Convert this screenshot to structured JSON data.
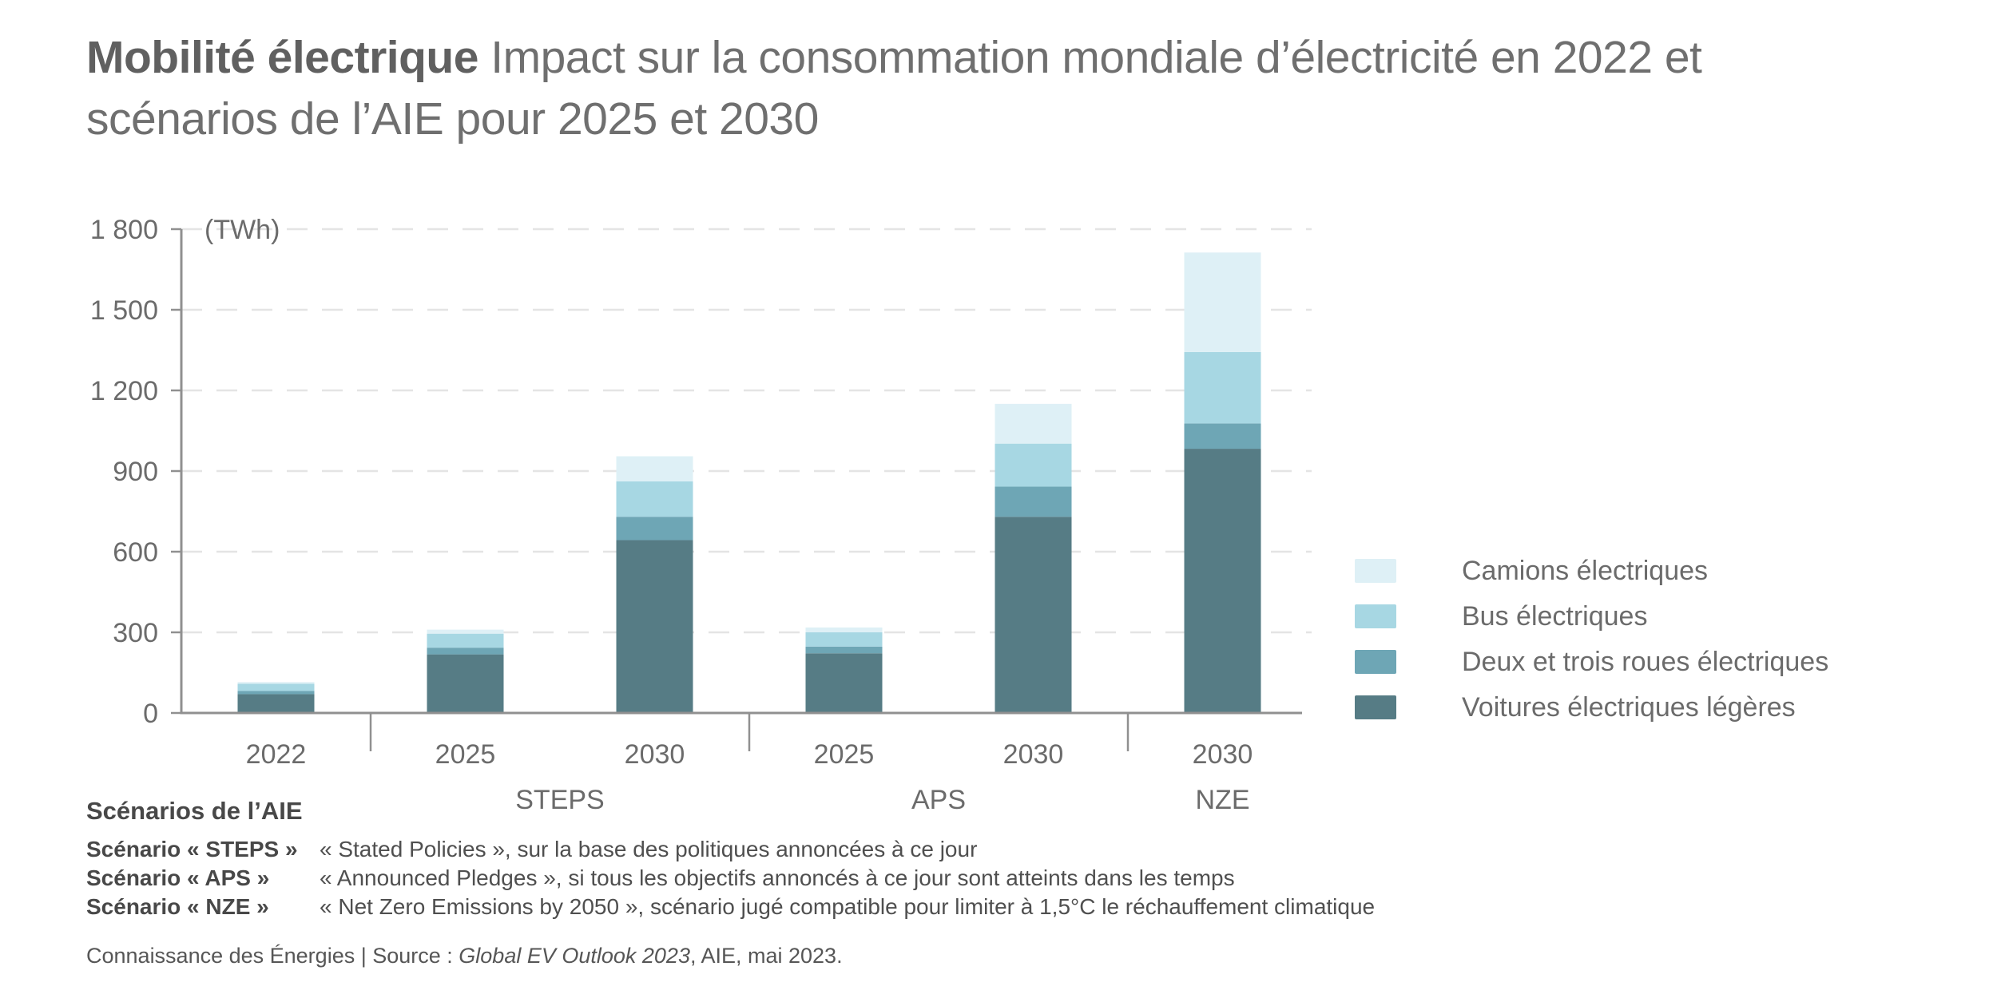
{
  "title": {
    "bold": "Mobilité électrique",
    "line1_rest": "Impact sur la consommation mondiale d’électricité en 2022 et",
    "line2": "scénarios de l’AIE pour 2025 et 2030"
  },
  "chart_data": {
    "type": "bar",
    "subtype": "stacked",
    "title": "Mobilité électrique — Impact sur la consommation mondiale d’électricité en 2022 et scénarios de l’AIE pour 2025 et 2030",
    "unit_label": "(TWh)",
    "ylim": [
      0,
      1800
    ],
    "ytick_step": 300,
    "yticks_labels": [
      "0",
      "300",
      "600",
      "900",
      "1 200",
      "1 500",
      "1 800"
    ],
    "grid": "horizontal-dashed",
    "legend_position": "right",
    "categories": [
      "2022",
      "2025",
      "2030",
      "2025",
      "2030",
      "2030"
    ],
    "groups": [
      {
        "label": "",
        "span": [
          0,
          0
        ]
      },
      {
        "label": "STEPS",
        "span": [
          1,
          2
        ]
      },
      {
        "label": "APS",
        "span": [
          3,
          4
        ]
      },
      {
        "label": "NZE",
        "span": [
          5,
          5
        ]
      }
    ],
    "series": [
      {
        "name": "Voitures électriques légères",
        "color": "#567C85",
        "values": [
          70,
          218,
          643,
          222,
          730,
          983
        ]
      },
      {
        "name": "Deux et trois roues électriques",
        "color": "#6EA6B5",
        "values": [
          12,
          25,
          87,
          25,
          112,
          94
        ]
      },
      {
        "name": "Bus électriques",
        "color": "#A7D7E3",
        "values": [
          27,
          52,
          132,
          53,
          160,
          266
        ]
      },
      {
        "name": "Camions électriques",
        "color": "#DEF0F6",
        "values": [
          6,
          15,
          93,
          18,
          148,
          370
        ]
      }
    ],
    "totals_approx": [
      115,
      310,
      955,
      318,
      1150,
      1713
    ],
    "legend": [
      {
        "label": "Camions électriques",
        "color": "#DEF0F6"
      },
      {
        "label": "Bus électriques",
        "color": "#A7D7E3"
      },
      {
        "label": "Deux et trois roues électriques",
        "color": "#6EA6B5"
      },
      {
        "label": "Voitures électriques légères",
        "color": "#567C85"
      }
    ]
  },
  "footnotes": {
    "heading": "Scénarios de l’AIE",
    "items": [
      {
        "label": "Scénario « STEPS »",
        "text": "« Stated Policies », sur la base des politiques annoncées à ce jour"
      },
      {
        "label": "Scénario « APS »",
        "text": "« Announced Pledges », si tous les objectifs annoncés à ce jour sont atteints dans les temps"
      },
      {
        "label": "Scénario « NZE »",
        "text": "« Net Zero Emissions by 2050 », scénario jugé compatible pour limiter à 1,5°C le réchauffement climatique"
      }
    ]
  },
  "source": {
    "prefix": "Connaissance des Énergies | Source : ",
    "italic": "Global EV Outlook 2023",
    "suffix": ", AIE, mai 2023."
  }
}
